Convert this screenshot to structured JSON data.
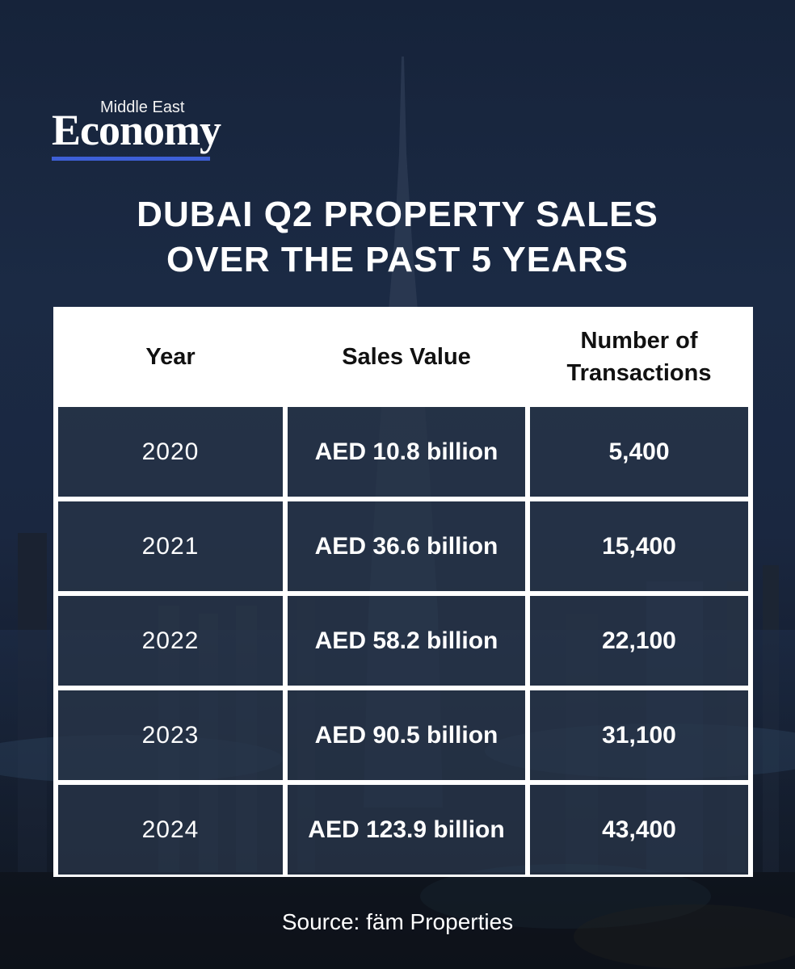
{
  "brand": {
    "small": "Middle East",
    "big": "Economy"
  },
  "headline": {
    "line1": "DUBAI Q2 PROPERTY SALES",
    "line2": "OVER THE PAST 5 YEARS"
  },
  "table": {
    "headers": {
      "year": "Year",
      "sales": "Sales Value",
      "tx_line1": "Number of",
      "tx_line2": "Transactions"
    },
    "rows": [
      {
        "year": "2020",
        "sales": "AED 10.8 billion",
        "transactions": "5,400"
      },
      {
        "year": "2021",
        "sales": "AED 36.6 billion",
        "transactions": "15,400"
      },
      {
        "year": "2022",
        "sales": "AED 58.2 billion",
        "transactions": "22,100"
      },
      {
        "year": "2023",
        "sales": "AED 90.5 billion",
        "transactions": "31,100"
      },
      {
        "year": "2024",
        "sales": "AED 123.9 billion",
        "transactions": "43,400"
      }
    ]
  },
  "source": "Source: fäm Properties",
  "colors": {
    "accent": "#3d5fd6",
    "background": "#1b2a44",
    "header_bg": "#ffffff"
  }
}
